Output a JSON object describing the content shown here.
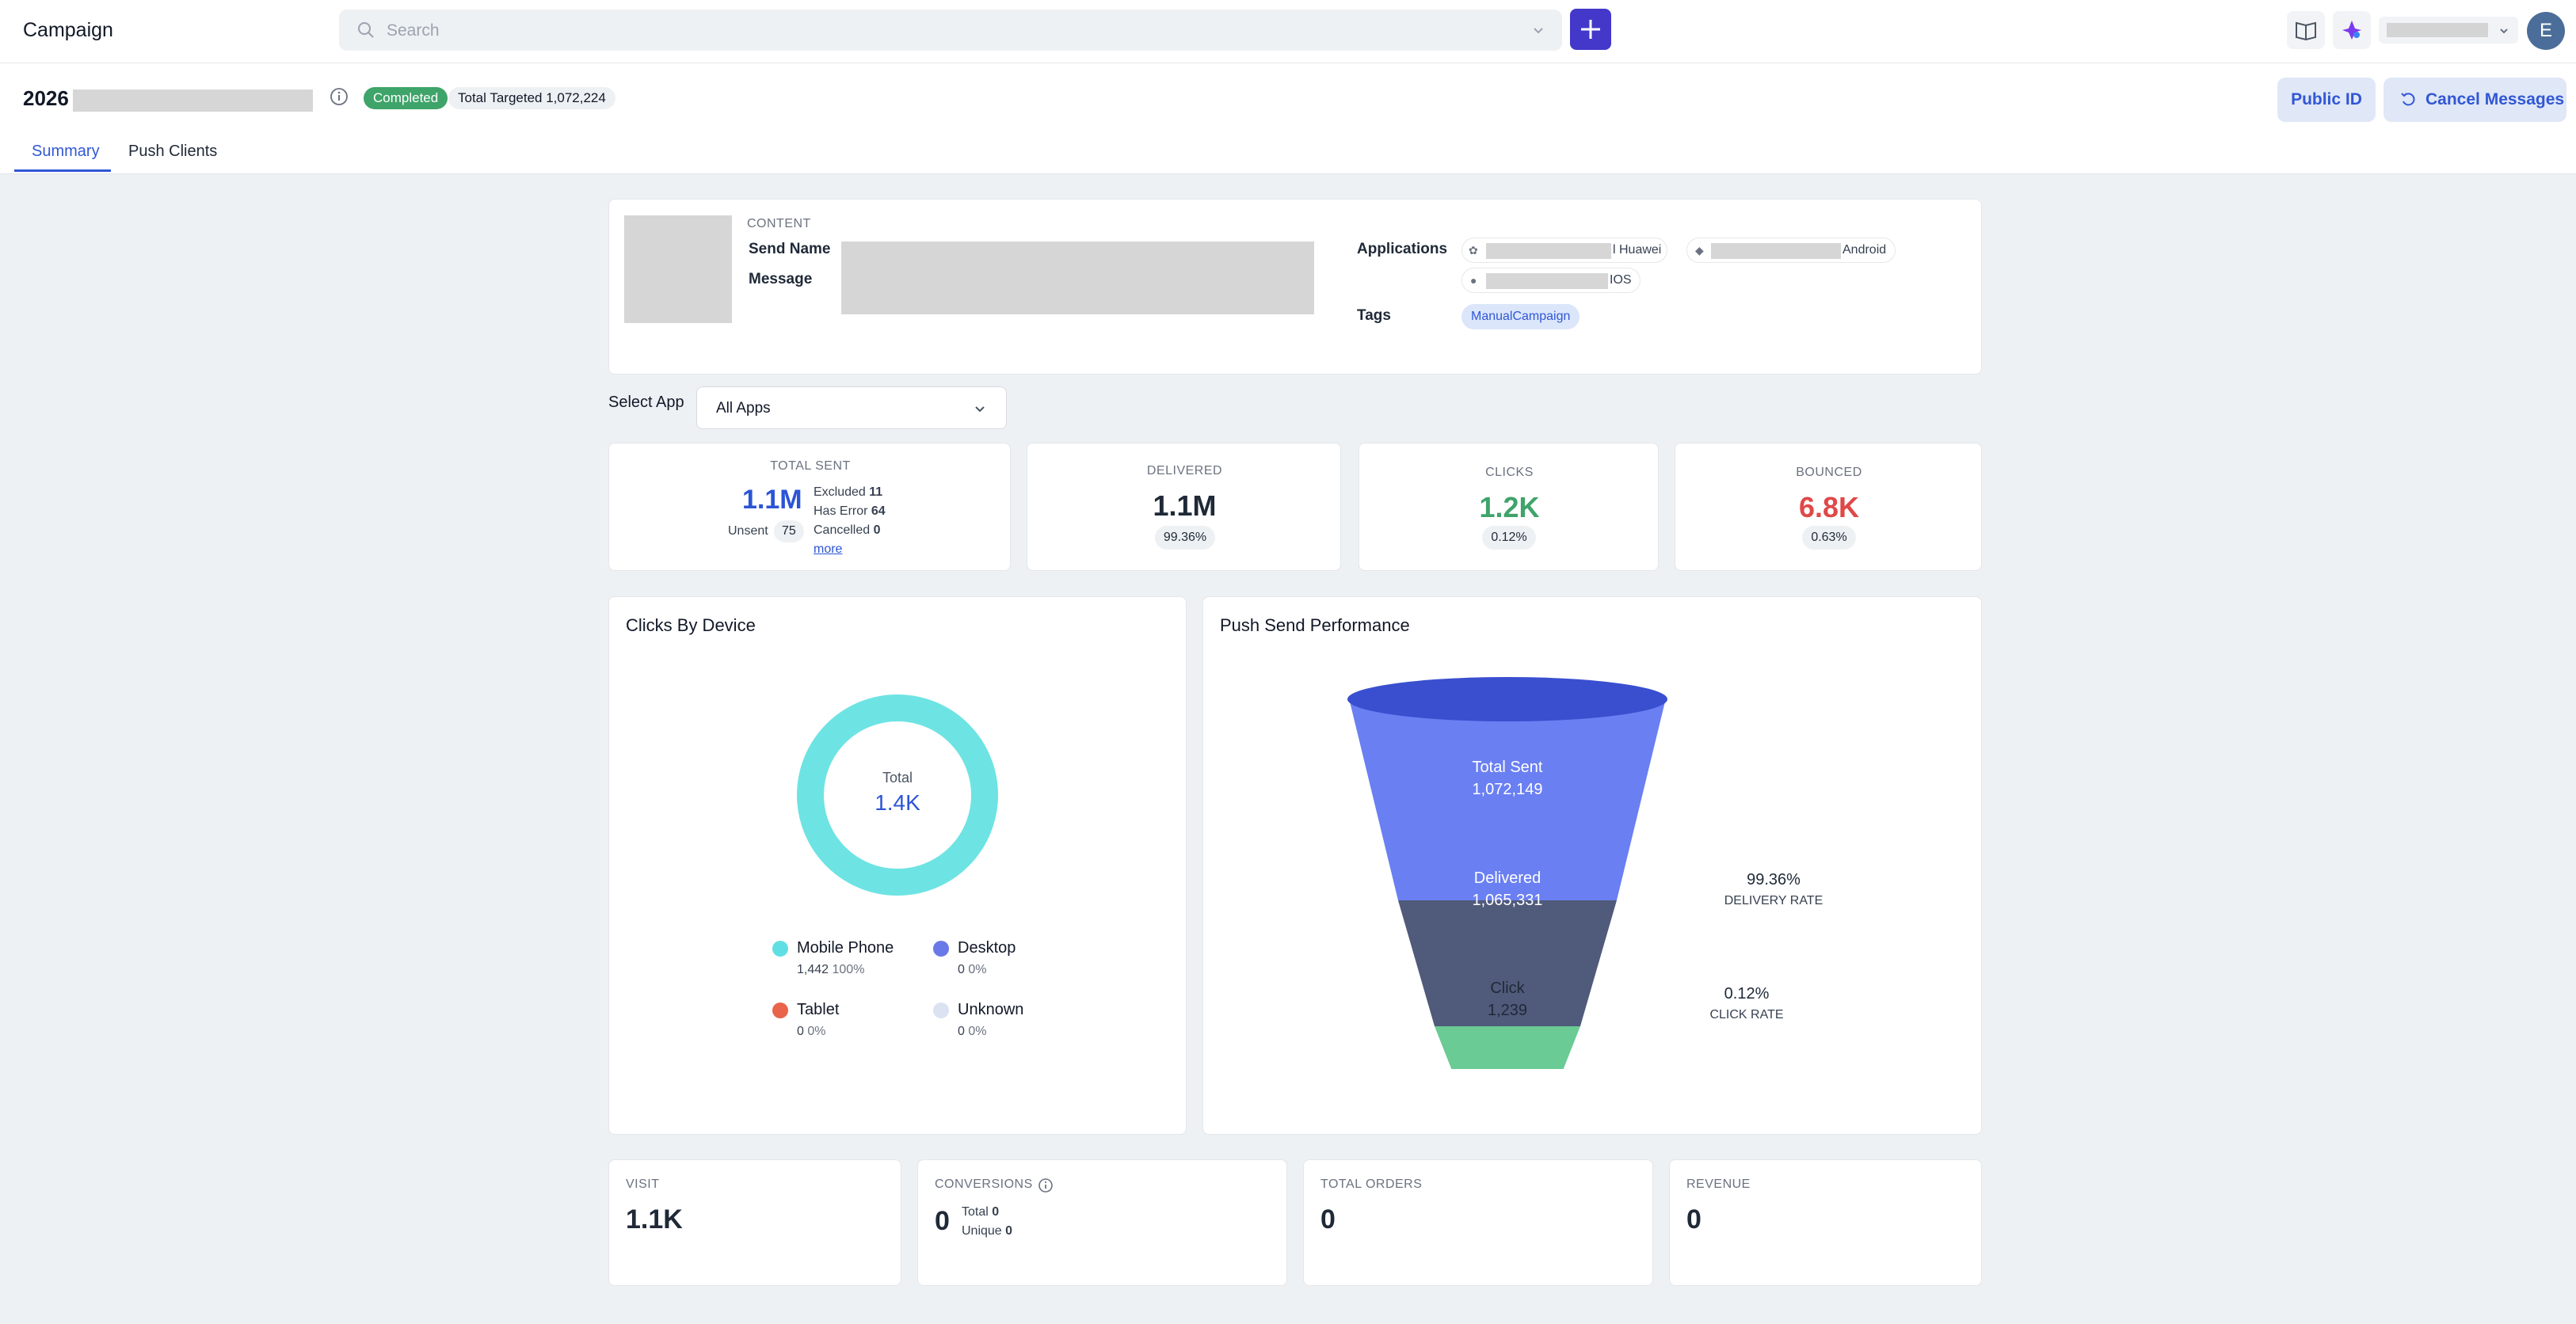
{
  "app": {
    "title": "Campaign",
    "avatar_initial": "E"
  },
  "search": {
    "placeholder": "Search"
  },
  "icons": {
    "search": "search-icon",
    "chevron": "chevron-down-icon",
    "plus": "plus-icon",
    "book": "book-icon",
    "ai": "sparkle-icon",
    "info": "info-icon",
    "undo": "undo-icon"
  },
  "campaign": {
    "name_prefix": "2026",
    "status": "Completed",
    "total_targeted": "Total Targeted 1,072,224"
  },
  "actions": {
    "public_id": "Public ID",
    "cancel_messages": "Cancel Messages"
  },
  "tabs": [
    {
      "label": "Summary"
    },
    {
      "label": "Push Clients"
    }
  ],
  "content": {
    "caption": "CONTENT",
    "send_name_label": "Send Name",
    "message_label": "Message",
    "applications_label": "Applications",
    "apps": [
      {
        "suffix": "l Huawei"
      },
      {
        "suffix": "Android"
      },
      {
        "suffix": "IOS"
      }
    ],
    "tags_label": "Tags",
    "tag": "ManualCampaign"
  },
  "select_app": {
    "label": "Select App",
    "value": "All Apps"
  },
  "stats": {
    "total_sent": {
      "title": "TOTAL SENT",
      "value": "1.1M",
      "unsent_label": "Unsent",
      "unsent_value": "75",
      "excluded_label": "Excluded",
      "excluded_value": "11",
      "has_error_label": "Has Error",
      "has_error_value": "64",
      "cancelled_label": "Cancelled",
      "cancelled_value": "0",
      "more": "more"
    },
    "delivered": {
      "title": "DELIVERED",
      "value": "1.1M",
      "pct": "99.36%"
    },
    "clicks": {
      "title": "CLICKS",
      "value": "1.2K",
      "pct": "0.12%"
    },
    "bounced": {
      "title": "BOUNCED",
      "value": "6.8K",
      "pct": "0.63%"
    }
  },
  "colors": {
    "accent": "#3157d5",
    "clicks": "#3fa46a",
    "bounced": "#e04848",
    "donut": "#6ee3e3"
  },
  "clicks_by_device": {
    "title": "Clicks By Device",
    "total_label": "Total",
    "total_value": "1.4K",
    "legend": [
      {
        "name": "Mobile Phone",
        "value": "1,442",
        "pct": "100%",
        "color": "#5fdfe3"
      },
      {
        "name": "Desktop",
        "value": "0",
        "pct": "0%",
        "color": "#6979e8"
      },
      {
        "name": "Tablet",
        "value": "0",
        "pct": "0%",
        "color": "#e8644b"
      },
      {
        "name": "Unknown",
        "value": "0",
        "pct": "0%",
        "color": "#dbe3f3"
      }
    ]
  },
  "push_send_performance": {
    "title": "Push Send Performance",
    "stages": [
      {
        "label": "Total Sent",
        "value": "1,072,149"
      },
      {
        "label": "Delivered",
        "value": "1,065,331"
      },
      {
        "label": "Click",
        "value": "1,239"
      }
    ],
    "delivery_rate": {
      "pct": "99.36%",
      "label": "DELIVERY RATE"
    },
    "click_rate": {
      "pct": "0.12%",
      "label": "CLICK RATE"
    }
  },
  "bottom": {
    "visit": {
      "title": "VISIT",
      "value": "1.1K"
    },
    "conversions": {
      "title": "CONVERSIONS",
      "value": "0",
      "total_label": "Total",
      "total_value": "0",
      "unique_label": "Unique",
      "unique_value": "0"
    },
    "total_orders": {
      "title": "TOTAL ORDERS",
      "value": "0"
    },
    "revenue": {
      "title": "REVENUE",
      "value": "0"
    }
  }
}
